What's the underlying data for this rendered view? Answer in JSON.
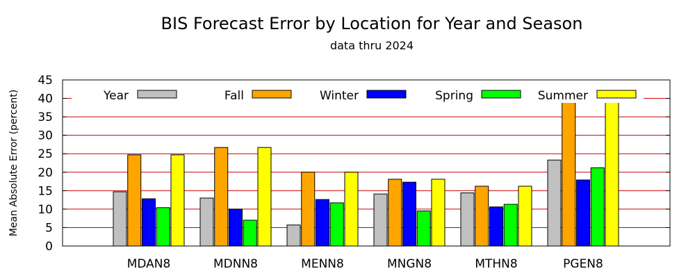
{
  "chart_data": {
    "type": "bar",
    "title": "BIS Forecast Error by Location for Year and Season",
    "subtitle": "data thru 2024",
    "xlabel": "",
    "ylabel": "Mean Absolute Error (percent)",
    "ylim": [
      0,
      45
    ],
    "yticks": [
      0,
      5,
      10,
      15,
      20,
      25,
      30,
      35,
      40,
      45
    ],
    "grid": "horizontal",
    "legend_placement": "top",
    "categories": [
      "MDAN8",
      "MDNN8",
      "MENN8",
      "MNGN8",
      "MTHN8",
      "PGEN8"
    ],
    "series": [
      {
        "name": "Year",
        "color": "#c0c0c0",
        "values": [
          14.7,
          13.0,
          5.7,
          14.1,
          14.4,
          23.3
        ]
      },
      {
        "name": "Fall",
        "color": "#ffa500",
        "values": [
          24.7,
          26.7,
          20.0,
          18.1,
          16.2,
          38.9
        ]
      },
      {
        "name": "Winter",
        "color": "#0000ff",
        "values": [
          12.8,
          10.0,
          12.6,
          17.3,
          10.6,
          17.9
        ]
      },
      {
        "name": "Spring",
        "color": "#00ff00",
        "values": [
          10.4,
          7.0,
          11.7,
          9.5,
          11.3,
          21.2
        ]
      },
      {
        "name": "Summer",
        "color": "#ffff00",
        "values": [
          24.7,
          26.7,
          20.0,
          18.1,
          16.2,
          38.9
        ]
      }
    ],
    "gridline_color": "#cc0000"
  }
}
